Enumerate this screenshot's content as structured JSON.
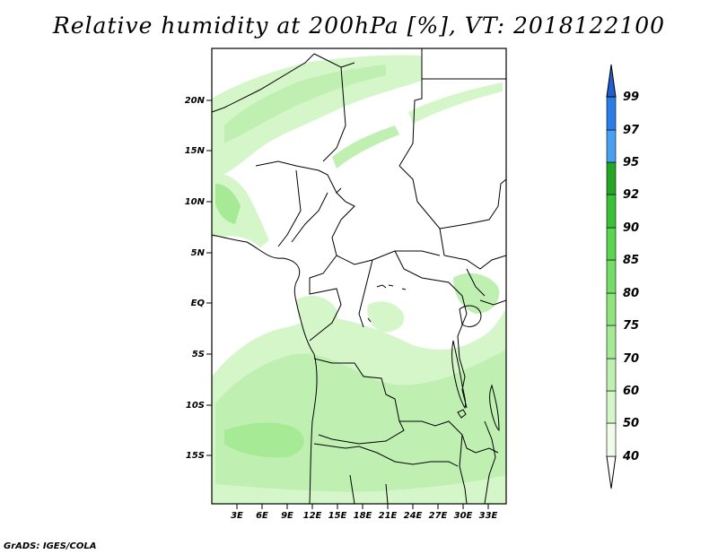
{
  "title": "Relative humidity at 200hPa [%], VT: 2018122100",
  "credit": "GrADS: IGES/COLA",
  "axes": {
    "lon_ticks": [
      "3E",
      "6E",
      "9E",
      "12E",
      "15E",
      "18E",
      "21E",
      "24E",
      "27E",
      "30E",
      "33E"
    ],
    "lat_ticks": [
      "20N",
      "15N",
      "10N",
      "5N",
      "EQ",
      "5S",
      "10S",
      "15S"
    ]
  },
  "colorbar": {
    "levels": [
      "40",
      "50",
      "60",
      "70",
      "75",
      "80",
      "85",
      "90",
      "92",
      "95",
      "97",
      "99"
    ],
    "colors": [
      "#f0fbea",
      "#d4f6c9",
      "#bff0b2",
      "#a6ea96",
      "#8fe47e",
      "#74dc67",
      "#5bd44f",
      "#3cc038",
      "#24a526",
      "#148c1a",
      "#4aa0f0",
      "#2a7de6",
      "#1f5fd2"
    ]
  },
  "chart_data": {
    "type": "heatmap",
    "variable": "Relative humidity",
    "level_hpa": 200,
    "valid_time": "2018122100",
    "units": "%",
    "lon_range": [
      0,
      35
    ],
    "lat_range": [
      -20,
      25
    ]
  }
}
